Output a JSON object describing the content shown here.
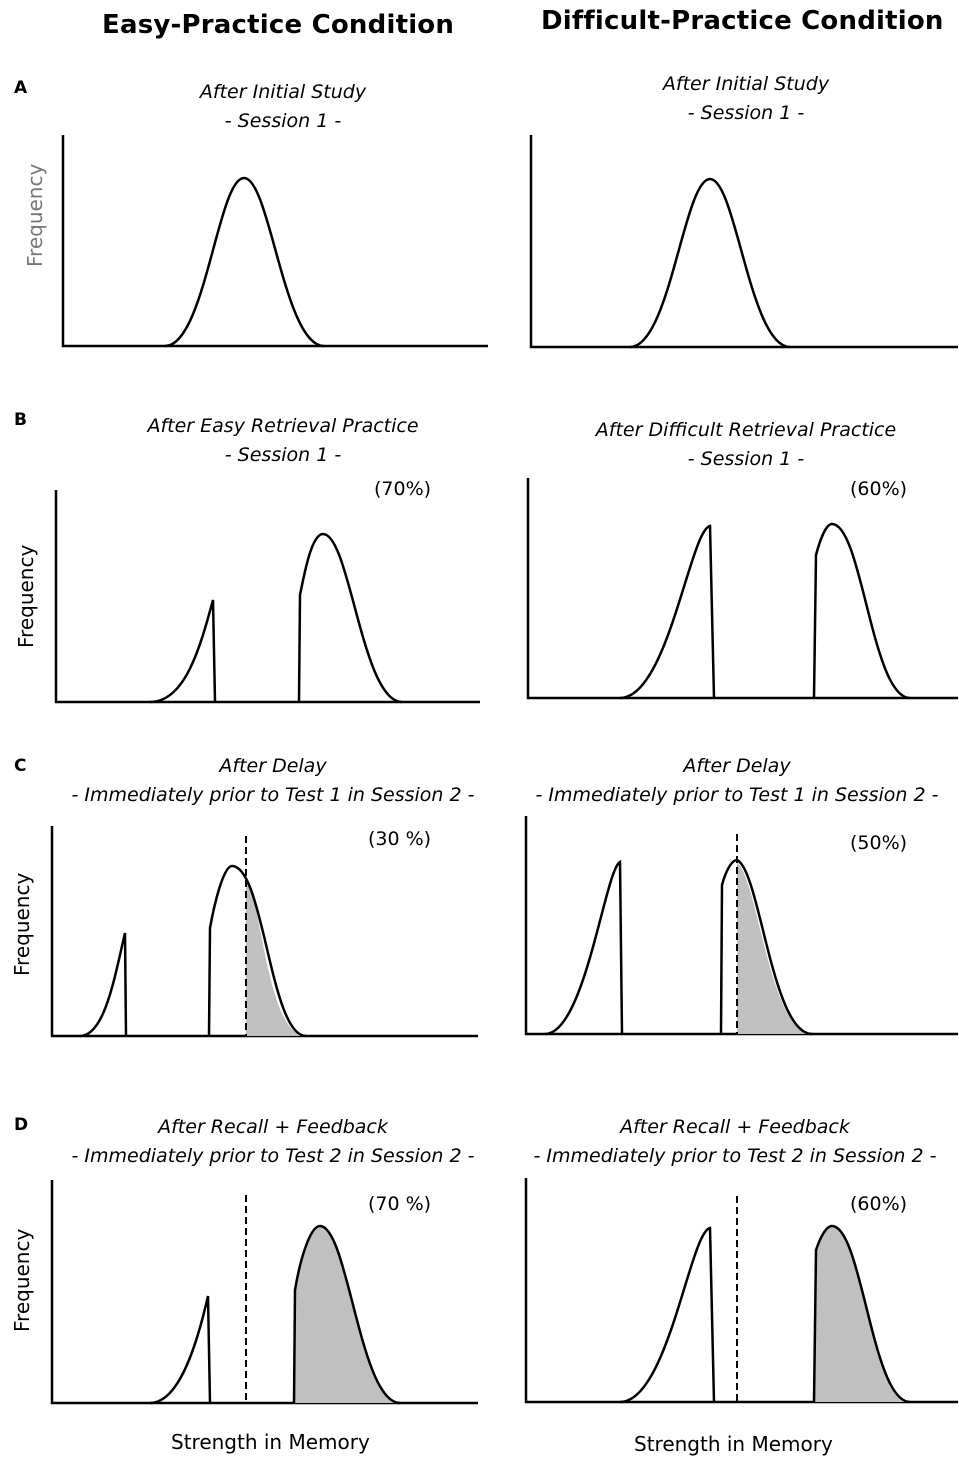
{
  "column_headers": {
    "left": "Easy-Practice Condition",
    "right": "Difficult-Practice Condition"
  },
  "rows": [
    {
      "letter": "A",
      "left": {
        "title": [
          "After Initial Study",
          "- Session 1 -"
        ],
        "percent": ""
      },
      "right": {
        "title": [
          "After Initial Study",
          "- Session 1 -"
        ],
        "percent": ""
      }
    },
    {
      "letter": "B",
      "left": {
        "title": [
          "After Easy Retrieval Practice",
          "- Session 1 -"
        ],
        "percent": "(70%)"
      },
      "right": {
        "title": [
          "After Difficult Retrieval Practice",
          "- Session 1 -"
        ],
        "percent": "(60%)"
      }
    },
    {
      "letter": "C",
      "left": {
        "title": [
          "After Delay",
          "- Immediately prior to Test 1 in Session 2 -"
        ],
        "percent": "(30 %)"
      },
      "right": {
        "title": [
          "After Delay",
          "- Immediately prior to Test 1 in Session 2 -"
        ],
        "percent": "(50%)"
      }
    },
    {
      "letter": "D",
      "left": {
        "title": [
          "After Recall + Feedback",
          "- Immediately prior to Test 2 in Session 2 -"
        ],
        "percent": "(70 %)"
      },
      "right": {
        "title": [
          "After Recall + Feedback",
          "- Immediately prior to Test 2 in Session 2 -"
        ],
        "percent": "(60%)"
      }
    }
  ],
  "axis": {
    "ylabel": "Frequency",
    "xlabel": "Strength in Memory"
  },
  "colors": {
    "curve": "#000000",
    "shaded_area": "#c0c0c0",
    "ylabel_row_a": "#777777"
  }
}
